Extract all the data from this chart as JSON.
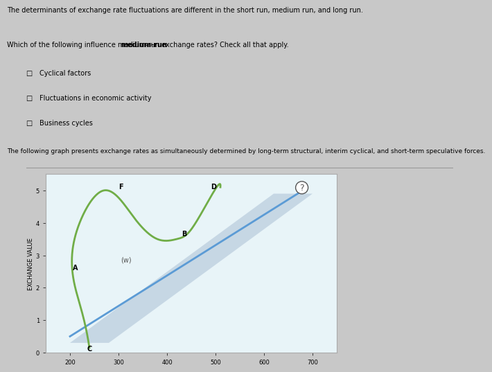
{
  "title_line1": "The determinants of exchange rate fluctuations are different in the short run, medium run, and long run.",
  "question": "Which of the following influence medium-run exchange rates? Check all that apply.",
  "options": [
    "Cyclical factors",
    "Fluctuations in economic activity",
    "Business cycles"
  ],
  "graph_description": "The following graph presents exchange rates as simultaneously determined by long-term structural, interim cyclical, and short-term speculative forces.",
  "ylabel": "EXCHANGE VALUE",
  "y_ticks": [
    0,
    1,
    2,
    3,
    4,
    5
  ],
  "x_ticks": [
    200,
    300,
    400,
    500,
    600,
    700
  ],
  "bg_color": "#d4e6f1",
  "chart_bg": "#e8f4f8",
  "band_color": "#b0c4d8",
  "blue_line_color": "#5b9bd5",
  "green_line_color": "#70ad47",
  "label_A": "A",
  "label_B": "B",
  "label_C": "C",
  "label_D": "D",
  "label_F": "F",
  "label_w": "(w)",
  "question_circle": "?"
}
